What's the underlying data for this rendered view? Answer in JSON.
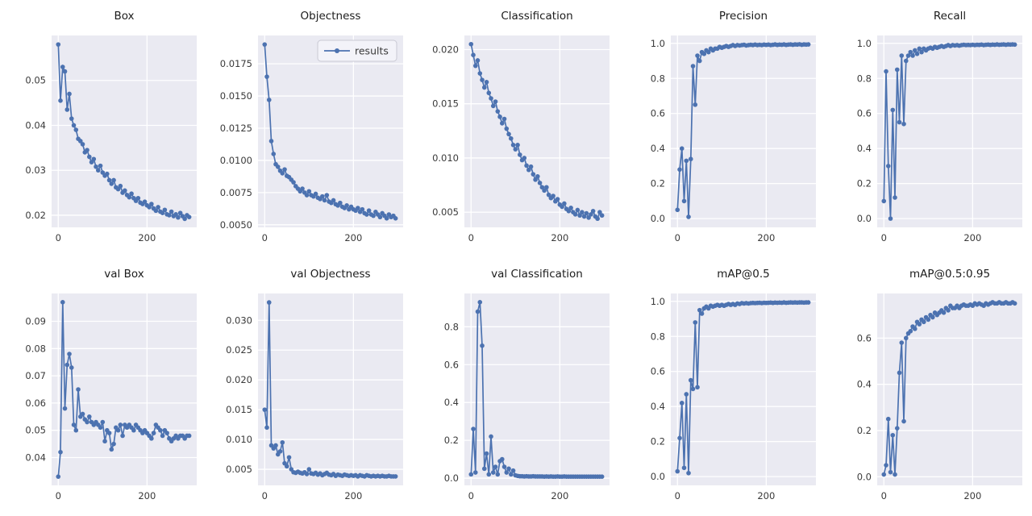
{
  "figure": {
    "background": "#ffffff",
    "axes_background": "#eaeaf2",
    "grid_color": "#ffffff",
    "line_color": "#4c72b0",
    "marker_color": "#4c72b0",
    "tick_text_color": "#3a3a3a",
    "title_text_color": "#1c1c1c",
    "legend": {
      "label": "results",
      "background": "#f3f3f9",
      "border": "#c9c9d4"
    }
  },
  "chart_data": [
    {
      "type": "line",
      "title": "Box",
      "series_name": "results",
      "show_legend": false,
      "x_start": 0,
      "x_step": 5,
      "xlim": [
        -15,
        312
      ],
      "xticks": [
        0,
        200
      ],
      "xtick_labels": [
        "0",
        "200"
      ],
      "ylim": [
        0.0173,
        0.06
      ],
      "yticks": [
        0.02,
        0.03,
        0.04,
        0.05
      ],
      "ytick_labels": [
        "0.02",
        "0.03",
        "0.04",
        "0.05"
      ],
      "values": [
        0.058,
        0.0455,
        0.053,
        0.052,
        0.0435,
        0.047,
        0.0415,
        0.04,
        0.039,
        0.037,
        0.0365,
        0.0358,
        0.034,
        0.0345,
        0.033,
        0.0318,
        0.0325,
        0.0308,
        0.03,
        0.031,
        0.0295,
        0.0288,
        0.0292,
        0.0278,
        0.027,
        0.0278,
        0.0262,
        0.0258,
        0.0265,
        0.025,
        0.0255,
        0.0245,
        0.024,
        0.0248,
        0.0238,
        0.0232,
        0.0238,
        0.0228,
        0.0225,
        0.023,
        0.0222,
        0.0218,
        0.0225,
        0.0215,
        0.021,
        0.0218,
        0.0208,
        0.0205,
        0.0212,
        0.0202,
        0.02,
        0.0208,
        0.0198,
        0.0202,
        0.0195,
        0.0205,
        0.0198,
        0.0192,
        0.02,
        0.0196
      ]
    },
    {
      "type": "line",
      "title": "Objectness",
      "series_name": "results",
      "show_legend": true,
      "x_start": 0,
      "x_step": 5,
      "xlim": [
        -15,
        312
      ],
      "xticks": [
        0,
        200
      ],
      "xtick_labels": [
        "0",
        "200"
      ],
      "ylim": [
        0.0048,
        0.0197
      ],
      "yticks": [
        0.005,
        0.0075,
        0.01,
        0.0125,
        0.015,
        0.0175
      ],
      "ytick_labels": [
        "0.0050",
        "0.0075",
        "0.0100",
        "0.0125",
        "0.0150",
        "0.0175"
      ],
      "values": [
        0.019,
        0.0165,
        0.0147,
        0.0115,
        0.0105,
        0.0097,
        0.0095,
        0.0092,
        0.009,
        0.0093,
        0.0088,
        0.0087,
        0.0085,
        0.0083,
        0.008,
        0.0078,
        0.0076,
        0.0078,
        0.0075,
        0.0073,
        0.0076,
        0.0073,
        0.0072,
        0.0074,
        0.0071,
        0.007,
        0.0072,
        0.0069,
        0.0073,
        0.0068,
        0.0067,
        0.0069,
        0.0066,
        0.0065,
        0.0067,
        0.0064,
        0.0063,
        0.0065,
        0.0062,
        0.0064,
        0.0062,
        0.0061,
        0.0063,
        0.006,
        0.0062,
        0.0059,
        0.0058,
        0.0061,
        0.0058,
        0.0057,
        0.006,
        0.0058,
        0.0056,
        0.0059,
        0.0057,
        0.0055,
        0.0058,
        0.0056,
        0.0057,
        0.0055
      ]
    },
    {
      "type": "line",
      "title": "Classification",
      "series_name": "results",
      "show_legend": false,
      "x_start": 0,
      "x_step": 5,
      "xlim": [
        -15,
        312
      ],
      "xticks": [
        0,
        200
      ],
      "xtick_labels": [
        "0",
        "200"
      ],
      "ylim": [
        0.0036,
        0.0213
      ],
      "yticks": [
        0.005,
        0.01,
        0.015,
        0.02
      ],
      "ytick_labels": [
        "0.005",
        "0.010",
        "0.015",
        "0.020"
      ],
      "values": [
        0.0205,
        0.0195,
        0.0185,
        0.019,
        0.0178,
        0.0172,
        0.0165,
        0.017,
        0.016,
        0.0155,
        0.0148,
        0.0152,
        0.0143,
        0.0138,
        0.0132,
        0.0136,
        0.0127,
        0.0122,
        0.0118,
        0.0112,
        0.0108,
        0.0112,
        0.0103,
        0.0098,
        0.01,
        0.0093,
        0.0089,
        0.0092,
        0.0085,
        0.008,
        0.0083,
        0.0077,
        0.0073,
        0.007,
        0.0073,
        0.0066,
        0.0063,
        0.0065,
        0.006,
        0.0062,
        0.0057,
        0.0055,
        0.0058,
        0.0053,
        0.0051,
        0.0054,
        0.005,
        0.0048,
        0.0052,
        0.0047,
        0.005,
        0.0046,
        0.0049,
        0.0045,
        0.0048,
        0.0051,
        0.0046,
        0.0044,
        0.005,
        0.0047
      ]
    },
    {
      "type": "line",
      "title": "Precision",
      "series_name": "results",
      "show_legend": false,
      "x_start": 0,
      "x_step": 5,
      "xlim": [
        -15,
        312
      ],
      "xticks": [
        0,
        200
      ],
      "xtick_labels": [
        "0",
        "200"
      ],
      "ylim": [
        -0.05,
        1.045
      ],
      "yticks": [
        0,
        0.2,
        0.4,
        0.6,
        0.8,
        1.0
      ],
      "ytick_labels": [
        "0.0",
        "0.2",
        "0.4",
        "0.6",
        "0.8",
        "1.0"
      ],
      "values": [
        0.05,
        0.28,
        0.4,
        0.1,
        0.33,
        0.01,
        0.34,
        0.87,
        0.65,
        0.93,
        0.9,
        0.95,
        0.94,
        0.96,
        0.95,
        0.97,
        0.96,
        0.97,
        0.97,
        0.98,
        0.975,
        0.98,
        0.985,
        0.98,
        0.985,
        0.99,
        0.985,
        0.99,
        0.988,
        0.99,
        0.992,
        0.988,
        0.99,
        0.992,
        0.99,
        0.993,
        0.99,
        0.992,
        0.99,
        0.993,
        0.991,
        0.993,
        0.99,
        0.992,
        0.994,
        0.991,
        0.993,
        0.992,
        0.994,
        0.991,
        0.993,
        0.994,
        0.992,
        0.994,
        0.993,
        0.995,
        0.992,
        0.994,
        0.993,
        0.994
      ]
    },
    {
      "type": "line",
      "title": "Recall",
      "series_name": "results",
      "show_legend": false,
      "x_start": 0,
      "x_step": 5,
      "xlim": [
        -15,
        312
      ],
      "xticks": [
        0,
        200
      ],
      "xtick_labels": [
        "0",
        "200"
      ],
      "ylim": [
        -0.05,
        1.045
      ],
      "yticks": [
        0,
        0.2,
        0.4,
        0.6,
        0.8,
        1.0
      ],
      "ytick_labels": [
        "0.0",
        "0.2",
        "0.4",
        "0.6",
        "0.8",
        "1.0"
      ],
      "values": [
        0.1,
        0.84,
        0.3,
        0.0,
        0.62,
        0.12,
        0.85,
        0.55,
        0.93,
        0.54,
        0.9,
        0.93,
        0.95,
        0.93,
        0.96,
        0.94,
        0.97,
        0.95,
        0.97,
        0.96,
        0.97,
        0.975,
        0.97,
        0.98,
        0.975,
        0.98,
        0.985,
        0.98,
        0.985,
        0.99,
        0.985,
        0.99,
        0.988,
        0.99,
        0.987,
        0.99,
        0.992,
        0.99,
        0.991,
        0.99,
        0.992,
        0.99,
        0.992,
        0.991,
        0.993,
        0.99,
        0.992,
        0.993,
        0.991,
        0.993,
        0.992,
        0.994,
        0.992,
        0.993,
        0.994,
        0.992,
        0.994,
        0.993,
        0.994,
        0.993
      ]
    },
    {
      "type": "line",
      "title": "val Box",
      "series_name": "results",
      "show_legend": false,
      "x_start": 0,
      "x_step": 5,
      "xlim": [
        -15,
        312
      ],
      "xticks": [
        0,
        200
      ],
      "xtick_labels": [
        "0",
        "200"
      ],
      "ylim": [
        0.0298,
        0.1002
      ],
      "yticks": [
        0.04,
        0.05,
        0.06,
        0.07,
        0.08,
        0.09
      ],
      "ytick_labels": [
        "0.04",
        "0.05",
        "0.06",
        "0.07",
        "0.08",
        "0.09"
      ],
      "values": [
        0.033,
        0.042,
        0.097,
        0.058,
        0.074,
        0.078,
        0.073,
        0.052,
        0.05,
        0.065,
        0.055,
        0.056,
        0.054,
        0.053,
        0.055,
        0.053,
        0.052,
        0.053,
        0.052,
        0.051,
        0.053,
        0.046,
        0.05,
        0.049,
        0.043,
        0.045,
        0.051,
        0.05,
        0.052,
        0.048,
        0.052,
        0.051,
        0.052,
        0.051,
        0.05,
        0.052,
        0.051,
        0.05,
        0.049,
        0.05,
        0.049,
        0.048,
        0.047,
        0.049,
        0.052,
        0.051,
        0.05,
        0.048,
        0.05,
        0.049,
        0.047,
        0.046,
        0.047,
        0.048,
        0.047,
        0.048,
        0.048,
        0.047,
        0.048,
        0.048
      ]
    },
    {
      "type": "line",
      "title": "val Objectness",
      "series_name": "results",
      "show_legend": false,
      "x_start": 0,
      "x_step": 5,
      "xlim": [
        -15,
        312
      ],
      "xticks": [
        0,
        200
      ],
      "xtick_labels": [
        "0",
        "200"
      ],
      "ylim": [
        0.0023,
        0.0345
      ],
      "yticks": [
        0.005,
        0.01,
        0.015,
        0.02,
        0.025,
        0.03
      ],
      "ytick_labels": [
        "0.005",
        "0.010",
        "0.015",
        "0.020",
        "0.025",
        "0.030"
      ],
      "values": [
        0.015,
        0.012,
        0.033,
        0.009,
        0.0085,
        0.009,
        0.0075,
        0.008,
        0.0095,
        0.006,
        0.0055,
        0.007,
        0.005,
        0.0045,
        0.0044,
        0.0046,
        0.0044,
        0.0043,
        0.0045,
        0.0042,
        0.005,
        0.0043,
        0.0042,
        0.0044,
        0.0041,
        0.0043,
        0.004,
        0.0042,
        0.0044,
        0.0041,
        0.004,
        0.0042,
        0.0039,
        0.0041,
        0.004,
        0.0039,
        0.0041,
        0.004,
        0.0039,
        0.004,
        0.0039,
        0.004,
        0.0038,
        0.004,
        0.0039,
        0.0038,
        0.004,
        0.0039,
        0.0038,
        0.0039,
        0.0038,
        0.0039,
        0.0038,
        0.0039,
        0.0038,
        0.0038,
        0.0039,
        0.0038,
        0.0038,
        0.0038
      ]
    },
    {
      "type": "line",
      "title": "val Classification",
      "series_name": "results",
      "show_legend": false,
      "x_start": 0,
      "x_step": 5,
      "xlim": [
        -15,
        312
      ],
      "xticks": [
        0,
        200
      ],
      "xtick_labels": [
        "0",
        "200"
      ],
      "ylim": [
        -0.038,
        0.976
      ],
      "yticks": [
        0,
        0.2,
        0.4,
        0.6,
        0.8
      ],
      "ytick_labels": [
        "0.0",
        "0.2",
        "0.4",
        "0.6",
        "0.8"
      ],
      "values": [
        0.02,
        0.26,
        0.03,
        0.88,
        0.93,
        0.7,
        0.05,
        0.13,
        0.02,
        0.22,
        0.03,
        0.06,
        0.02,
        0.09,
        0.1,
        0.06,
        0.03,
        0.05,
        0.02,
        0.04,
        0.015,
        0.012,
        0.01,
        0.01,
        0.009,
        0.01,
        0.009,
        0.009,
        0.01,
        0.009,
        0.009,
        0.009,
        0.009,
        0.008,
        0.009,
        0.008,
        0.009,
        0.008,
        0.008,
        0.009,
        0.008,
        0.008,
        0.009,
        0.008,
        0.008,
        0.008,
        0.008,
        0.008,
        0.008,
        0.008,
        0.008,
        0.008,
        0.008,
        0.008,
        0.008,
        0.008,
        0.008,
        0.008,
        0.008,
        0.008
      ]
    },
    {
      "type": "line",
      "title": "mAP@0.5",
      "series_name": "results",
      "show_legend": false,
      "x_start": 0,
      "x_step": 5,
      "xlim": [
        -15,
        312
      ],
      "xticks": [
        0,
        200
      ],
      "xtick_labels": [
        "0",
        "200"
      ],
      "ylim": [
        -0.05,
        1.045
      ],
      "yticks": [
        0,
        0.2,
        0.4,
        0.6,
        0.8,
        1.0
      ],
      "ytick_labels": [
        "0.0",
        "0.2",
        "0.4",
        "0.6",
        "0.8",
        "1.0"
      ],
      "values": [
        0.03,
        0.22,
        0.42,
        0.05,
        0.47,
        0.02,
        0.55,
        0.5,
        0.88,
        0.51,
        0.95,
        0.93,
        0.96,
        0.97,
        0.96,
        0.975,
        0.97,
        0.975,
        0.98,
        0.975,
        0.98,
        0.975,
        0.98,
        0.985,
        0.98,
        0.985,
        0.98,
        0.988,
        0.985,
        0.99,
        0.988,
        0.99,
        0.988,
        0.99,
        0.991,
        0.99,
        0.991,
        0.992,
        0.99,
        0.992,
        0.991,
        0.992,
        0.993,
        0.991,
        0.993,
        0.992,
        0.993,
        0.992,
        0.994,
        0.992,
        0.993,
        0.994,
        0.993,
        0.994,
        0.993,
        0.994,
        0.994,
        0.993,
        0.994,
        0.994
      ]
    },
    {
      "type": "line",
      "title": "mAP@0.5:0.95",
      "series_name": "results",
      "show_legend": false,
      "x_start": 0,
      "x_step": 5,
      "xlim": [
        -15,
        312
      ],
      "xticks": [
        0,
        200
      ],
      "xtick_labels": [
        "0",
        "200"
      ],
      "ylim": [
        -0.037,
        0.793
      ],
      "yticks": [
        0,
        0.2,
        0.4,
        0.6
      ],
      "ytick_labels": [
        "0.0",
        "0.2",
        "0.4",
        "0.6"
      ],
      "values": [
        0.01,
        0.05,
        0.25,
        0.02,
        0.18,
        0.01,
        0.21,
        0.45,
        0.58,
        0.24,
        0.6,
        0.62,
        0.63,
        0.65,
        0.64,
        0.67,
        0.66,
        0.68,
        0.67,
        0.69,
        0.68,
        0.7,
        0.69,
        0.71,
        0.7,
        0.71,
        0.72,
        0.71,
        0.73,
        0.72,
        0.74,
        0.73,
        0.73,
        0.74,
        0.73,
        0.74,
        0.745,
        0.74,
        0.74,
        0.745,
        0.74,
        0.75,
        0.745,
        0.75,
        0.745,
        0.74,
        0.75,
        0.745,
        0.75,
        0.755,
        0.75,
        0.75,
        0.755,
        0.75,
        0.75,
        0.755,
        0.75,
        0.75,
        0.755,
        0.75
      ]
    }
  ]
}
